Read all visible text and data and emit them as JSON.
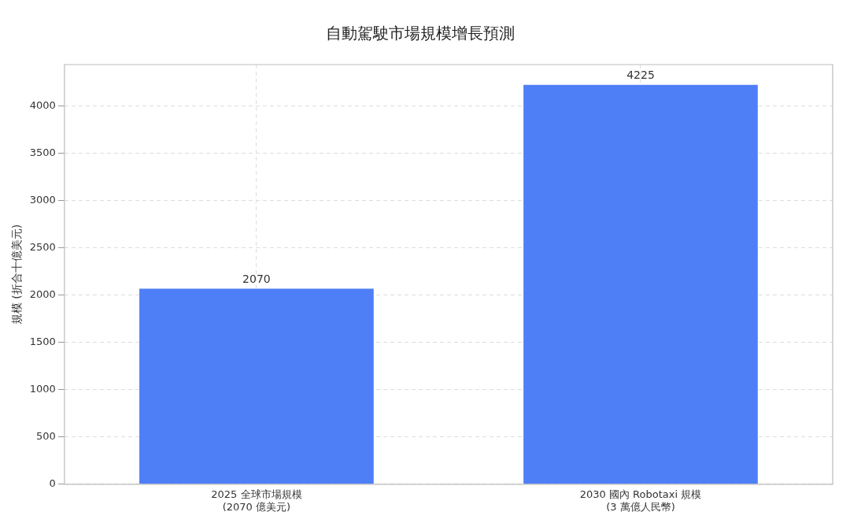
{
  "chart_data": {
    "type": "bar",
    "title": "自動駕駛市場規模增長預測",
    "ylabel": "規模 (折合十億美元)",
    "categories": [
      "2025 全球市場規模\n(2070 億美元)",
      "2030 國內 Robotaxi 規模\n(3 萬億人民幣)"
    ],
    "values": [
      2070,
      4225
    ],
    "color": "#4f7ff7",
    "ylim": [
      0,
      4440
    ],
    "yticks": [
      0,
      500,
      1000,
      1500,
      2000,
      2500,
      3000,
      3500,
      4000
    ],
    "grid": true,
    "data_labels": true,
    "legend": false
  }
}
